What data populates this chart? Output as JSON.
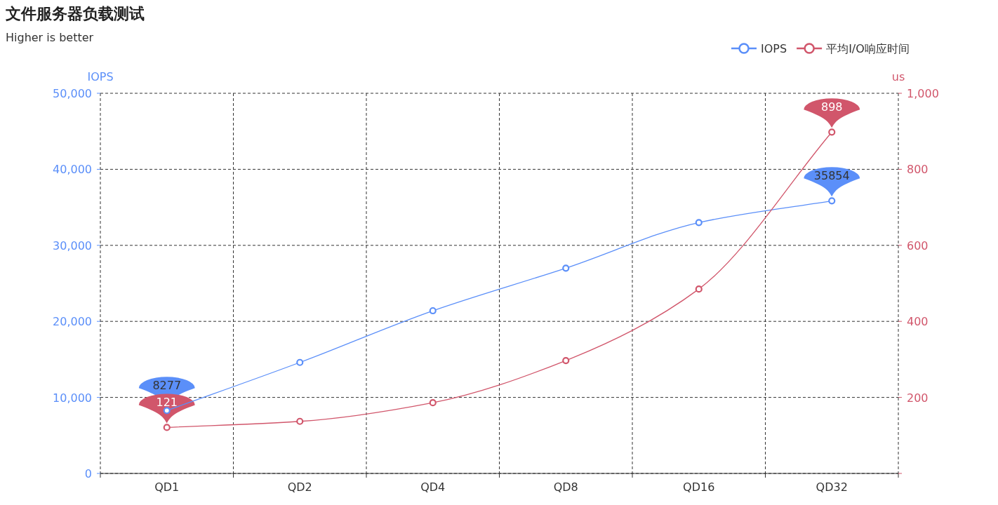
{
  "chart_data": {
    "type": "line",
    "title": "文件服务器负载测试",
    "subtitle": "Higher is better",
    "categories": [
      "QD1",
      "QD2",
      "QD4",
      "QD8",
      "QD16",
      "QD32"
    ],
    "series": [
      {
        "name": "IOPS",
        "color": "#5b8ff9",
        "axis": "y",
        "values": [
          8277,
          14600,
          21400,
          27000,
          33000,
          35854
        ],
        "value_labels": [
          "8277",
          null,
          null,
          null,
          null,
          "35854"
        ]
      },
      {
        "name": "平均I/O响应时间",
        "color": "#d1566b",
        "axis": "y2",
        "values": [
          121,
          137,
          186,
          297,
          485,
          898
        ],
        "value_labels": [
          "121",
          null,
          null,
          null,
          null,
          "898"
        ]
      }
    ],
    "ylabel": "IOPS",
    "y2label": "us",
    "ylim": [
      0,
      50000
    ],
    "yticks": [
      0,
      {
        "value": 10000,
        "label": "10,000"
      },
      {
        "value": 20000,
        "label": "20,000"
      },
      {
        "value": 30000,
        "label": "30,000"
      },
      {
        "value": 40000,
        "label": "40,000"
      },
      {
        "value": 50000,
        "label": "50,000"
      }
    ],
    "y2lim": [
      0,
      1000
    ],
    "y2ticks": [
      {
        "value": 0,
        "label": null
      },
      200,
      400,
      600,
      800,
      {
        "value": 1000,
        "label": "1,000"
      }
    ],
    "grid": true,
    "legend": "top right",
    "marker": "circle",
    "line_style": "solid"
  }
}
